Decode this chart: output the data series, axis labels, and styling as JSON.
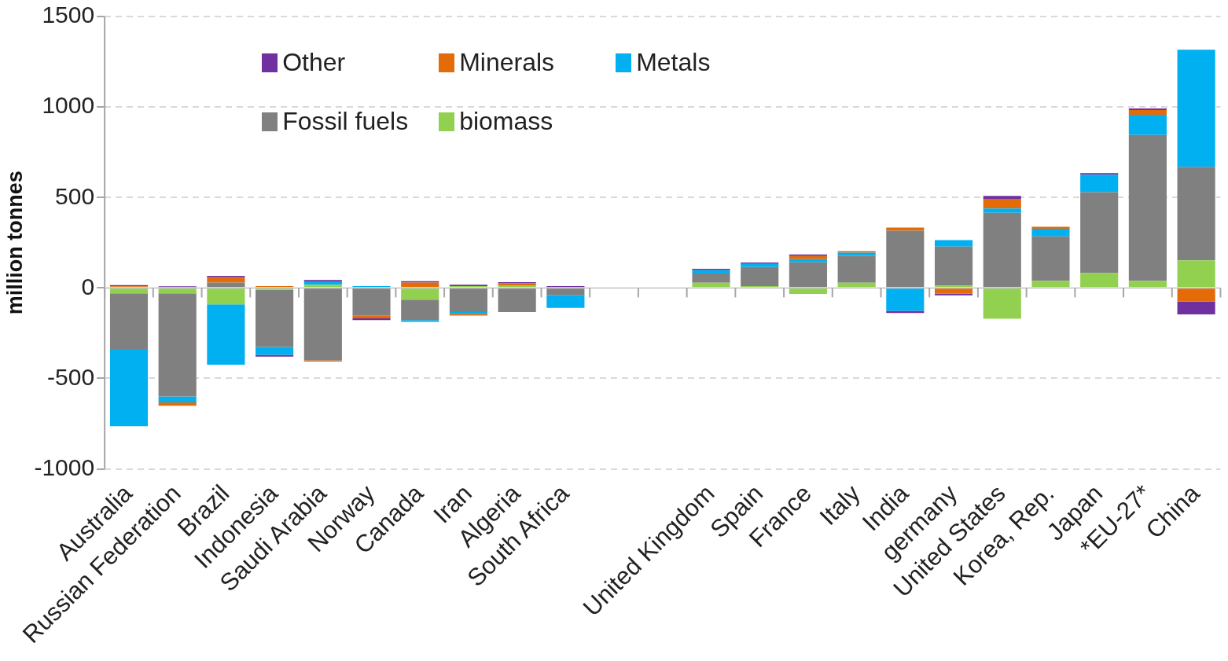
{
  "chart_data": {
    "type": "bar",
    "stacked": true,
    "ylabel": "million tonnes",
    "categories": [
      "Australia",
      "Russian Federation",
      "Brazil",
      "Indonesia",
      "Saudi Arabia",
      "Norway",
      "Canada",
      "Iran",
      "Algeria",
      "South Africa",
      null,
      null,
      "United Kingdom",
      "Spain",
      "France",
      "Italy",
      "India",
      "germany",
      "United States",
      "Korea, Rep.",
      "Japan",
      "*EU-27*",
      "China"
    ],
    "series": [
      {
        "name": "biomass",
        "color": "#92d050",
        "values": [
          -30,
          -30,
          -91,
          -10,
          18,
          null,
          -65,
          10,
          15,
          null,
          null,
          null,
          29,
          10,
          -33,
          29,
          null,
          12,
          -170,
          38,
          82,
          38,
          152
        ]
      },
      {
        "name": "Fossil fuels",
        "color": "#808080",
        "values": [
          -307,
          -570,
          30,
          -316,
          -400,
          -154,
          -113,
          -133,
          -133,
          -39,
          null,
          null,
          51,
          106,
          142,
          148,
          316,
          217,
          415,
          247,
          447,
          807,
          517
        ]
      },
      {
        "name": "Metals",
        "color": "#00b0f0",
        "values": [
          -427,
          -33,
          -333,
          -44,
          18,
          10,
          -9,
          -10,
          null,
          -71,
          null,
          null,
          18,
          17,
          17,
          18,
          -127,
          35,
          24,
          42,
          97,
          112,
          648
        ]
      },
      {
        "name": "Minerals",
        "color": "#e36c09",
        "values": [
          9,
          -18,
          29,
          10,
          -7,
          -14,
          30,
          -10,
          10,
          null,
          null,
          null,
          null,
          null,
          17,
          9,
          18,
          -32,
          53,
          11,
          null,
          26,
          -76
        ]
      },
      {
        "name": "Other",
        "color": "#7030a0",
        "values": [
          7,
          9,
          8,
          -9,
          8,
          -10,
          7,
          8,
          7,
          10,
          null,
          null,
          8,
          8,
          9,
          null,
          -12,
          -9,
          17,
          null,
          9,
          9,
          -70
        ]
      }
    ],
    "ylim": [
      -1000,
      1500
    ],
    "yticks": [
      -1000,
      -500,
      0,
      500,
      1000,
      1500
    ],
    "grid": "y",
    "legend": "top left"
  }
}
